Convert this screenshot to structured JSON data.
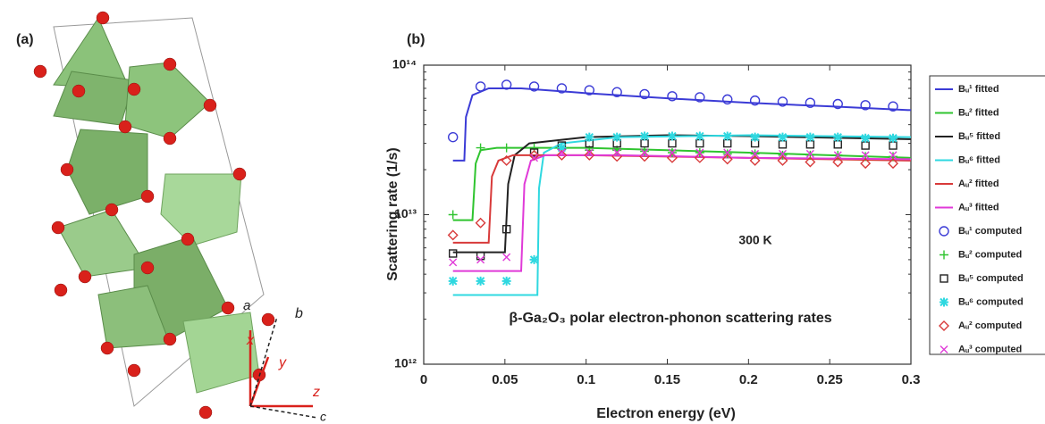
{
  "panel_a": {
    "label": "(a)",
    "axis_labels": [
      "a",
      "b",
      "x",
      "y",
      "z",
      "c"
    ]
  },
  "chart_data": {
    "type": "line",
    "panel_label": "(b)",
    "xlabel": "Electron energy (eV)",
    "ylabel": "Scattering rate (1/s)",
    "annotations": [
      "300 K",
      "β-Ga₂O₃ polar electron-phonon scattering rates"
    ],
    "xlim": [
      0,
      0.3
    ],
    "xticks": [
      0,
      0.05,
      0.1,
      0.15,
      0.2,
      0.25,
      0.3
    ],
    "ylim": [
      1000000000000.0,
      100000000000000.0
    ],
    "yscale": "log",
    "yticks": [
      {
        "value": 1000000000000.0,
        "label": "10¹²"
      },
      {
        "value": 10000000000000.0,
        "label": "10¹³"
      },
      {
        "value": 100000000000000.0,
        "label": "10¹⁴"
      }
    ],
    "series": [
      {
        "name": "Bᵤ¹ fitted",
        "color": "#3b3bd6",
        "style": "line",
        "x": [
          0.018,
          0.025,
          0.026,
          0.03,
          0.04,
          0.06,
          0.1,
          0.15,
          0.2,
          0.25,
          0.3
        ],
        "values": [
          23000000000000.0,
          23000000000000.0,
          45000000000000.0,
          63000000000000.0,
          70000000000000.0,
          70000000000000.0,
          65000000000000.0,
          60000000000000.0,
          56000000000000.0,
          53000000000000.0,
          50000000000000.0
        ]
      },
      {
        "name": "Bᵤ² fitted",
        "color": "#2fc42f",
        "style": "line",
        "x": [
          0.018,
          0.03,
          0.032,
          0.035,
          0.045,
          0.1,
          0.2,
          0.3
        ],
        "values": [
          9200000000000.0,
          9200000000000.0,
          22000000000000.0,
          27000000000000.0,
          28000000000000.0,
          28000000000000.0,
          26000000000000.0,
          24000000000000.0
        ]
      },
      {
        "name": "Bᵤ⁵ fitted",
        "color": "#222222",
        "style": "line",
        "x": [
          0.018,
          0.05,
          0.052,
          0.056,
          0.065,
          0.1,
          0.15,
          0.2,
          0.3
        ],
        "values": [
          5600000000000.0,
          5600000000000.0,
          16000000000000.0,
          25000000000000.0,
          30000000000000.0,
          33000000000000.0,
          34000000000000.0,
          33500000000000.0,
          32000000000000.0
        ]
      },
      {
        "name": "Bᵤ⁶ fitted",
        "color": "#2fd8e0",
        "style": "line",
        "x": [
          0.018,
          0.07,
          0.071,
          0.074,
          0.085,
          0.12,
          0.2,
          0.3
        ],
        "values": [
          2900000000000.0,
          2900000000000.0,
          15000000000000.0,
          26000000000000.0,
          30000000000000.0,
          33000000000000.0,
          34000000000000.0,
          33000000000000.0
        ]
      },
      {
        "name": "Aᵤ² fitted",
        "color": "#d83a3a",
        "style": "line",
        "x": [
          0.018,
          0.04,
          0.042,
          0.046,
          0.055,
          0.1,
          0.2,
          0.3
        ],
        "values": [
          6500000000000.0,
          6500000000000.0,
          18000000000000.0,
          23000000000000.0,
          25000000000000.0,
          25000000000000.0,
          24000000000000.0,
          23000000000000.0
        ]
      },
      {
        "name": "Aᵤ³ fitted",
        "color": "#e03ad8",
        "style": "line",
        "x": [
          0.018,
          0.06,
          0.062,
          0.066,
          0.075,
          0.12,
          0.2,
          0.3
        ],
        "values": [
          4200000000000.0,
          4200000000000.0,
          16000000000000.0,
          23000000000000.0,
          25000000000000.0,
          25000000000000.0,
          24000000000000.0,
          23500000000000.0
        ]
      },
      {
        "name": "Bᵤ¹ computed",
        "color": "#3b3bd6",
        "style": "circle",
        "x": [
          0.018,
          0.035,
          0.051,
          0.068,
          0.085,
          0.102,
          0.119,
          0.136,
          0.153,
          0.17,
          0.187,
          0.204,
          0.221,
          0.238,
          0.255,
          0.272,
          0.289
        ],
        "values": [
          33000000000000.0,
          72000000000000.0,
          74000000000000.0,
          72000000000000.0,
          70000000000000.0,
          68000000000000.0,
          66000000000000.0,
          64000000000000.0,
          62000000000000.0,
          61000000000000.0,
          59000000000000.0,
          58000000000000.0,
          57000000000000.0,
          56000000000000.0,
          55000000000000.0,
          54000000000000.0,
          53000000000000.0
        ]
      },
      {
        "name": "Bᵤ² computed",
        "color": "#2fc42f",
        "style": "plus",
        "x": [
          0.018,
          0.035,
          0.051,
          0.068,
          0.085,
          0.102,
          0.119,
          0.136,
          0.153,
          0.17,
          0.187,
          0.204,
          0.221,
          0.238,
          0.255,
          0.272,
          0.289
        ],
        "values": [
          10000000000000.0,
          28000000000000.0,
          28000000000000.0,
          28000000000000.0,
          27500000000000.0,
          27000000000000.0,
          27000000000000.0,
          26500000000000.0,
          26000000000000.0,
          26000000000000.0,
          25500000000000.0,
          25500000000000.0,
          25000000000000.0,
          25000000000000.0,
          25000000000000.0,
          24500000000000.0,
          24500000000000.0
        ]
      },
      {
        "name": "Bᵤ⁵ computed",
        "color": "#222222",
        "style": "square",
        "x": [
          0.018,
          0.035,
          0.051,
          0.068,
          0.085,
          0.102,
          0.119,
          0.136,
          0.153,
          0.17,
          0.187,
          0.204,
          0.221,
          0.238,
          0.255,
          0.272,
          0.289
        ],
        "values": [
          5500000000000.0,
          5300000000000.0,
          8000000000000.0,
          26000000000000.0,
          29000000000000.0,
          30000000000000.0,
          30000000000000.0,
          30000000000000.0,
          30000000000000.0,
          30000000000000.0,
          30000000000000.0,
          30000000000000.0,
          29500000000000.0,
          29500000000000.0,
          29500000000000.0,
          29000000000000.0,
          29000000000000.0
        ]
      },
      {
        "name": "Bᵤ⁶ computed",
        "color": "#2fd8e0",
        "style": "star",
        "x": [
          0.018,
          0.035,
          0.051,
          0.068,
          0.085,
          0.102,
          0.119,
          0.136,
          0.153,
          0.17,
          0.187,
          0.204,
          0.221,
          0.238,
          0.255,
          0.272,
          0.289
        ],
        "values": [
          3600000000000.0,
          3600000000000.0,
          3600000000000.0,
          5000000000000.0,
          28000000000000.0,
          33000000000000.0,
          33000000000000.0,
          33500000000000.0,
          33500000000000.0,
          33500000000000.0,
          33500000000000.0,
          33000000000000.0,
          33000000000000.0,
          33000000000000.0,
          33000000000000.0,
          32500000000000.0,
          32500000000000.0
        ]
      },
      {
        "name": "Aᵤ² computed",
        "color": "#d83a3a",
        "style": "diamond",
        "x": [
          0.018,
          0.035,
          0.051,
          0.068,
          0.085,
          0.102,
          0.119,
          0.136,
          0.153,
          0.17,
          0.187,
          0.204,
          0.221,
          0.238,
          0.255,
          0.272,
          0.289
        ],
        "values": [
          7300000000000.0,
          8800000000000.0,
          23000000000000.0,
          25000000000000.0,
          25000000000000.0,
          25000000000000.0,
          24500000000000.0,
          24500000000000.0,
          24000000000000.0,
          24000000000000.0,
          23500000000000.0,
          23000000000000.0,
          23000000000000.0,
          22500000000000.0,
          22500000000000.0,
          22000000000000.0,
          22000000000000.0
        ]
      },
      {
        "name": "Aᵤ³ computed",
        "color": "#e03ad8",
        "style": "cross",
        "x": [
          0.018,
          0.035,
          0.051,
          0.068,
          0.085,
          0.102,
          0.119,
          0.136,
          0.153,
          0.17,
          0.187,
          0.204,
          0.221,
          0.238,
          0.255,
          0.272,
          0.289
        ],
        "values": [
          4800000000000.0,
          5000000000000.0,
          5200000000000.0,
          24000000000000.0,
          26000000000000.0,
          26000000000000.0,
          26000000000000.0,
          26000000000000.0,
          26000000000000.0,
          26000000000000.0,
          26000000000000.0,
          25500000000000.0,
          25500000000000.0,
          25500000000000.0,
          25000000000000.0,
          25000000000000.0,
          25000000000000.0
        ]
      }
    ]
  }
}
